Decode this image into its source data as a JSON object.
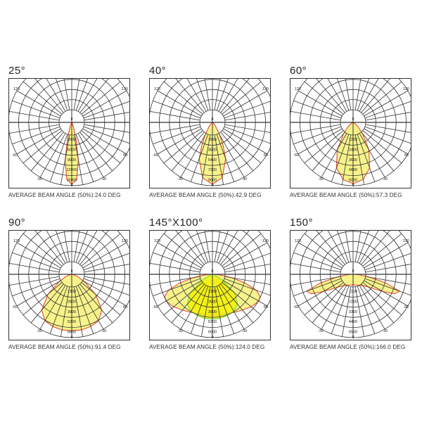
{
  "colors": {
    "fill": "#f7f38a",
    "fill_strong": "#f2f000",
    "curve_c0": "#e8483a",
    "curve_c90": "#7ad64a",
    "grid": "#333333"
  },
  "chart_data": [
    {
      "type": "polar",
      "title": "25°",
      "caption": "AVERAGE BEAM ANGLE (50%):24.0 DEG",
      "angle_labels": [
        "120",
        "-60",
        "-30",
        "0",
        "30",
        "60",
        "120"
      ],
      "rings": [
        "3000",
        "6000",
        "9000",
        "12000",
        "15000"
      ],
      "ring_max": 15000,
      "curves": [
        {
          "angles": [
            0,
            5,
            10,
            15,
            20,
            25,
            30
          ],
          "values": [
            14700,
            13500,
            9000,
            3800,
            1200,
            300,
            0
          ],
          "color": "#e8483a"
        }
      ]
    },
    {
      "type": "polar",
      "title": "40°",
      "caption": "AVERAGE BEAM ANGLE (50%):42.9 DEG",
      "angle_labels": [
        "120",
        "-60",
        "-30",
        "0",
        "30",
        "60",
        "120"
      ],
      "rings": [
        "1800",
        "3600",
        "5400",
        "7200",
        "9000"
      ],
      "ring_max": 9000,
      "curves": [
        {
          "angles": [
            0,
            10,
            20,
            25,
            30,
            40,
            50,
            60
          ],
          "values": [
            8800,
            8000,
            5500,
            3600,
            2100,
            700,
            200,
            0
          ],
          "color": "#e8483a"
        }
      ]
    },
    {
      "type": "polar",
      "title": "60°",
      "caption": "AVERAGE BEAM ANGLE (50%):57.3 DEG",
      "angle_labels": [
        "120",
        "-60",
        "-30",
        "0",
        "30",
        "60",
        "120"
      ],
      "rings": [
        "1200",
        "2400",
        "3600",
        "4800",
        "6000"
      ],
      "ring_max": 6000,
      "curves": [
        {
          "angles": [
            0,
            10,
            20,
            30,
            40,
            50,
            60,
            70
          ],
          "values": [
            5800,
            5500,
            4600,
            3000,
            1400,
            600,
            200,
            0
          ],
          "color": "#e8483a"
        }
      ]
    },
    {
      "type": "polar",
      "title": "90°",
      "caption": "AVERAGE BEAM ANGLE (50%):91.4 DEG",
      "angle_labels": [
        "120",
        "-60",
        "-30",
        "0",
        "30",
        "60",
        "120"
      ],
      "rings": [
        "1300",
        "2600",
        "3900",
        "5200",
        "6500"
      ],
      "ring_max": 6500,
      "curves": [
        {
          "angles": [
            0,
            10,
            20,
            30,
            40,
            50,
            60,
            70,
            80,
            90
          ],
          "values": [
            5800,
            5800,
            5700,
            5500,
            4800,
            3200,
            1500,
            600,
            100,
            0
          ],
          "color": "#e8483a"
        }
      ]
    },
    {
      "type": "polar",
      "title": "145°X100°",
      "caption": "AVERAGE BEAM ANGLE (50%):124.0 DEG",
      "angle_labels": [
        "120",
        "-60",
        "-30",
        "0",
        "30",
        "60",
        "120"
      ],
      "rings": [
        "1300",
        "2600",
        "3900",
        "5200",
        "6500"
      ],
      "ring_max": 6500,
      "curves": [
        {
          "angles": [
            0,
            10,
            20,
            30,
            40,
            50,
            60,
            65,
            70,
            75,
            80,
            85,
            90
          ],
          "values": [
            4200,
            4200,
            4300,
            4500,
            4800,
            5200,
            5500,
            5400,
            4800,
            3500,
            2000,
            800,
            200
          ],
          "color": "#e8483a"
        },
        {
          "angles": [
            0,
            10,
            20,
            30,
            40,
            50,
            60,
            70,
            80
          ],
          "values": [
            4600,
            4600,
            4500,
            4400,
            4000,
            3000,
            1200,
            200,
            0
          ],
          "color": "#7ad64a"
        }
      ]
    },
    {
      "type": "polar",
      "title": "150°",
      "caption": "AVERAGE BEAM ANGLE (50%):166.0 DEG",
      "angle_labels": [
        "120",
        "-60",
        "-30",
        "0",
        "30",
        "60",
        "120"
      ],
      "rings": [
        "1100",
        "2200",
        "3300",
        "4400",
        "5500"
      ],
      "ring_max": 5500,
      "curves": [
        {
          "angles": [
            0,
            10,
            20,
            30,
            40,
            50,
            55,
            60,
            65,
            70,
            75,
            80,
            85,
            90
          ],
          "values": [
            900,
            950,
            1000,
            1100,
            1300,
            1700,
            2200,
            3000,
            4000,
            4300,
            3000,
            1500,
            600,
            200
          ],
          "color": "#e8483a"
        }
      ]
    }
  ]
}
